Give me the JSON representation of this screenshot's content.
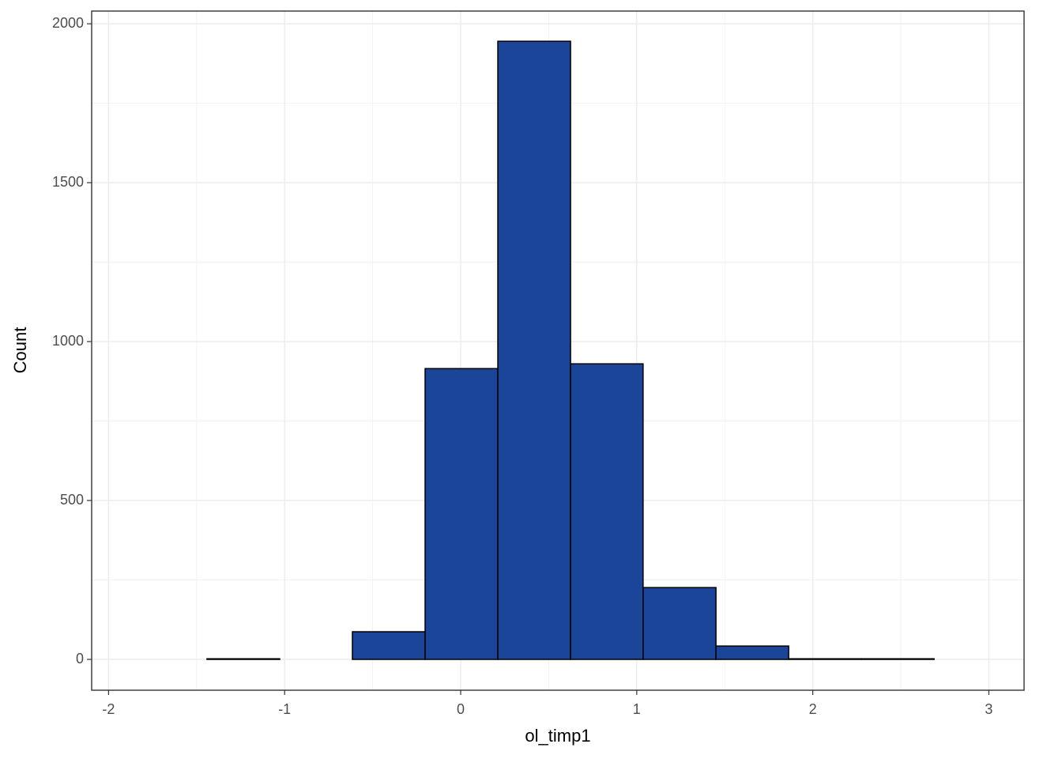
{
  "chart_data": {
    "type": "histogram",
    "x_label": "ol_timp1",
    "y_label": "Count",
    "bins": [
      -1.854,
      -1.441,
      -1.028,
      -0.615,
      -0.202,
      0.211,
      0.624,
      1.036,
      1.45,
      1.863,
      2.276,
      2.689,
      3.101
    ],
    "values": [
      0,
      2,
      0,
      87,
      915,
      1945,
      930,
      226,
      42,
      2,
      2,
      0
    ],
    "color": "#1a4599",
    "edge_color": "#000000",
    "xlim": [
      -2.096,
      3.2
    ],
    "ylim": [
      -97,
      2040
    ],
    "xticks": [
      -2,
      -1,
      0,
      1,
      2,
      3
    ],
    "yticks": [
      0,
      500,
      1000,
      1500,
      2000
    ],
    "grid": true
  }
}
